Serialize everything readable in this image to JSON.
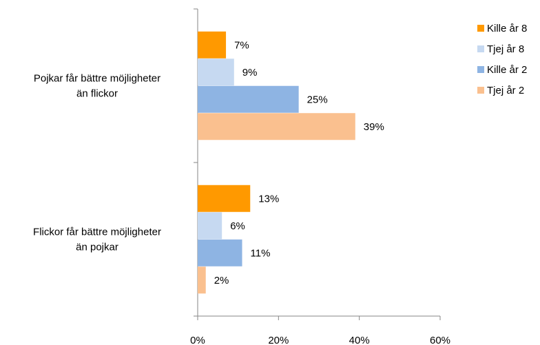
{
  "chart_data": {
    "type": "bar",
    "orientation": "horizontal",
    "categories": [
      [
        "Pojkar får bättre möjligheter",
        "än flickor"
      ],
      [
        "Flickor får bättre möjligheter",
        "än pojkar"
      ]
    ],
    "series": [
      {
        "name": "Kille år 8",
        "values": [
          7,
          13
        ],
        "color": "#FF9900"
      },
      {
        "name": "Tjej år 8",
        "values": [
          9,
          6
        ],
        "color": "#C6D9F1"
      },
      {
        "name": "Kille år 2",
        "values": [
          25,
          11
        ],
        "color": "#8EB4E3"
      },
      {
        "name": "Tjej år 2",
        "values": [
          39,
          2
        ],
        "color": "#FAC08F"
      }
    ],
    "value_suffix": "%",
    "xlim": [
      0,
      60
    ],
    "xticks": [
      0,
      20,
      40,
      60
    ],
    "xtick_labels": [
      "0%",
      "20%",
      "40%",
      "60%"
    ],
    "title": "",
    "xlabel": "",
    "ylabel": "",
    "grid": false,
    "legend_position": "top-right",
    "axis_color": "#868686"
  }
}
